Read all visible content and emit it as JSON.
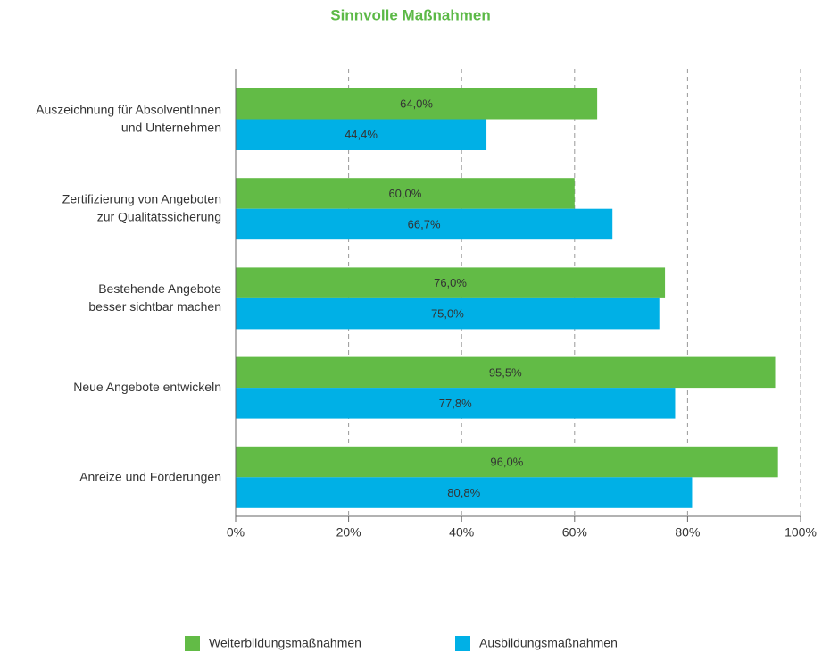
{
  "chart_data": {
    "type": "hbar",
    "title": "Sinnvolle Maßnahmen",
    "categories": [
      [
        "Auszeichnung für AbsolventInnen",
        "und Unternehmen"
      ],
      [
        "Zertifizierung von Angeboten",
        "zur Qualitätssicherung"
      ],
      [
        "Bestehende Angebote",
        "besser sichtbar machen"
      ],
      [
        "Neue Angebote entwickeln"
      ],
      [
        "Anreize und Förderungen"
      ]
    ],
    "series": [
      {
        "name": "Weiterbildungsmaßnahmen",
        "color": "#62bb46",
        "values": [
          64.0,
          60.0,
          76.0,
          95.5,
          96.0
        ],
        "value_labels": [
          "64,0%",
          "60,0%",
          "76,0%",
          "95,5%",
          "96,0%"
        ]
      },
      {
        "name": "Ausbildungsmaßnahmen",
        "color": "#00b0e6",
        "values": [
          44.4,
          66.7,
          75.0,
          77.8,
          80.8
        ],
        "value_labels": [
          "44,4%",
          "66,7%",
          "75,0%",
          "77,8%",
          "80,8%"
        ]
      }
    ],
    "xlim": [
      0,
      100
    ],
    "xticks": [
      {
        "value": 0,
        "label": "0%"
      },
      {
        "value": 20,
        "label": "20%"
      },
      {
        "value": 40,
        "label": "40%"
      },
      {
        "value": 60,
        "label": "60%"
      },
      {
        "value": 80,
        "label": "80%"
      },
      {
        "value": 100,
        "label": "100%"
      }
    ],
    "grid": true,
    "legend": "bottom"
  }
}
